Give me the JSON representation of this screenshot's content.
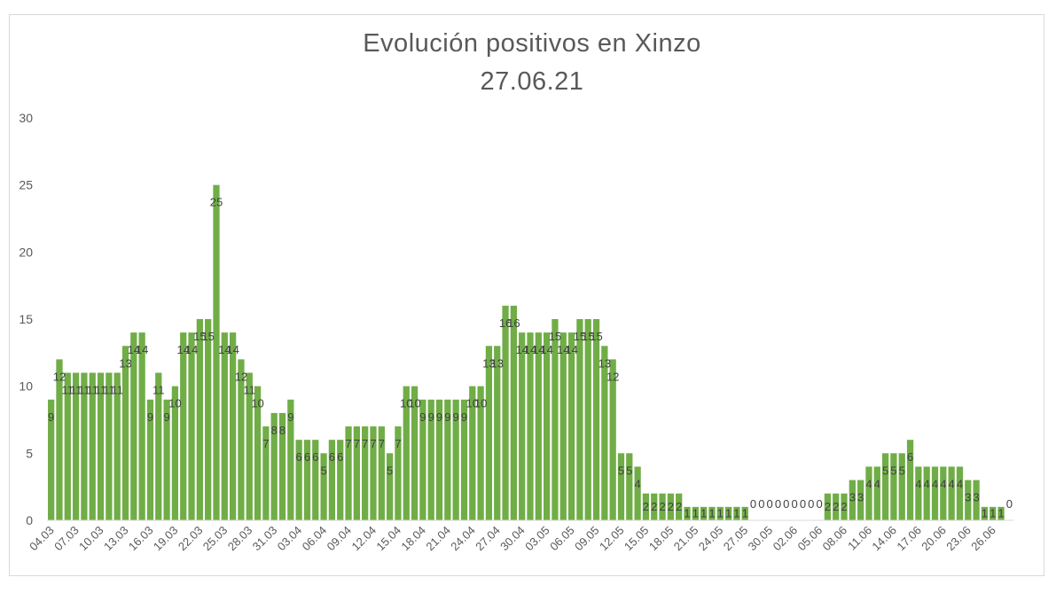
{
  "chart_data": {
    "type": "bar",
    "title": "Evolución positivos en Xinzo",
    "subtitle": "27.06.21",
    "ylim": [
      0,
      30
    ],
    "yticks": [
      0,
      5,
      10,
      15,
      20,
      25,
      30
    ],
    "grid": false,
    "legend": "none",
    "bar_color": "#70ad47",
    "x_tick_labels": [
      "04.03",
      "07.03",
      "10.03",
      "13.03",
      "16.03",
      "19.03",
      "22.03",
      "25.03",
      "28.03",
      "31.03",
      "03.04",
      "06.04",
      "09.04",
      "12.04",
      "15.04",
      "18.04",
      "21.04",
      "24.04",
      "27.04",
      "30.04",
      "03.05",
      "06.05",
      "09.05",
      "12.05",
      "15.05",
      "18.05",
      "21.05",
      "24.05",
      "27.05",
      "30.05",
      "02.06",
      "05.06",
      "08.06",
      "11.06",
      "14.06",
      "17.06",
      "20.06",
      "23.06",
      "26.06"
    ],
    "values": [
      9,
      12,
      11,
      11,
      11,
      11,
      11,
      11,
      11,
      13,
      14,
      14,
      9,
      11,
      9,
      10,
      14,
      14,
      15,
      15,
      25,
      14,
      14,
      12,
      11,
      10,
      7,
      8,
      8,
      9,
      6,
      6,
      6,
      5,
      6,
      6,
      7,
      7,
      7,
      7,
      7,
      5,
      7,
      10,
      10,
      9,
      9,
      9,
      9,
      9,
      9,
      10,
      10,
      13,
      13,
      16,
      16,
      14,
      14,
      14,
      14,
      15,
      14,
      14,
      15,
      15,
      15,
      13,
      12,
      5,
      5,
      4,
      2,
      2,
      2,
      2,
      2,
      1,
      1,
      1,
      1,
      1,
      1,
      1,
      1,
      0,
      0,
      0,
      0,
      0,
      0,
      0,
      0,
      0,
      2,
      2,
      2,
      3,
      3,
      4,
      4,
      5,
      5,
      5,
      6,
      4,
      4,
      4,
      4,
      4,
      4,
      3,
      3,
      1,
      1,
      1,
      0
    ]
  }
}
